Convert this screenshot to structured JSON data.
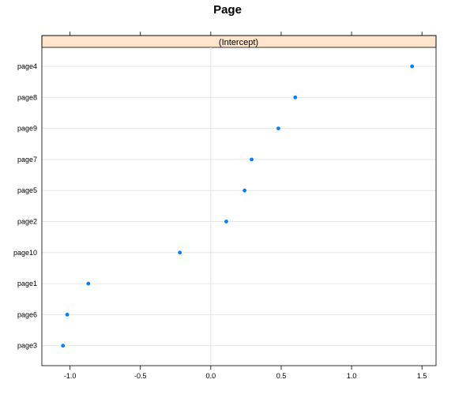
{
  "chart_data": {
    "type": "scatter",
    "title": "Page",
    "panel_strip": "(Intercept)",
    "xlabel": "",
    "ylabel": "",
    "xlim": [
      -1.2,
      1.6
    ],
    "x_ticks": [
      -1.0,
      -0.5,
      0.0,
      0.5,
      1.0,
      1.5
    ],
    "x_tick_labels": [
      "-1.0",
      "-0.5",
      "0.0",
      "0.5",
      "1.0",
      "1.5"
    ],
    "categories": [
      "page4",
      "page8",
      "page9",
      "page7",
      "page5",
      "page2",
      "page10",
      "page1",
      "page6",
      "page3"
    ],
    "values": [
      1.43,
      0.6,
      0.48,
      0.29,
      0.24,
      0.11,
      -0.22,
      -0.87,
      -1.02,
      -1.05
    ],
    "colors": {
      "point": "#0080ff",
      "strip_bg": "#ffe5cc",
      "grid": "#e6e6e6"
    }
  }
}
